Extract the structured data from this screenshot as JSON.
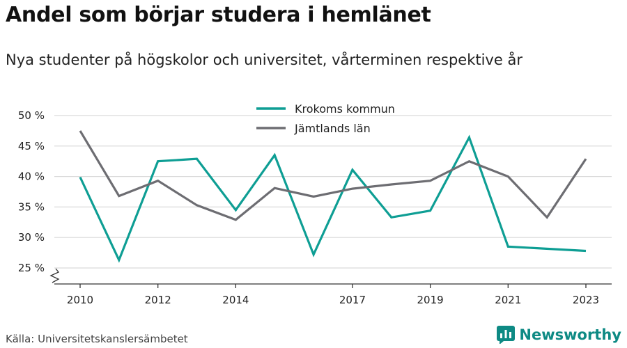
{
  "header": {
    "title": "Andel som börjar studera i hemlänet",
    "subtitle": "Nya studenter på högskolor och universitet, vårterminen respektive år"
  },
  "footer": {
    "source": "Källa: Universitetskanslersämbetet",
    "brand": "Newsworthy"
  },
  "colors": {
    "accent": "#0e9e94",
    "secondary": "#6d6d72",
    "grid": "#d9d9d9",
    "axis": "#333333",
    "brand": "#0e8a84"
  },
  "icons": {
    "brand": "bar-chart-logo-icon"
  },
  "chart_data": {
    "type": "line",
    "title": "Andel som börjar studera i hemlänet",
    "subtitle": "Nya studenter på högskolor och universitet, vårterminen respektive år",
    "xlabel": "",
    "ylabel": "",
    "x": [
      2010,
      2011,
      2012,
      2013,
      2014,
      2015,
      2016,
      2017,
      2018,
      2019,
      2020,
      2021,
      2022,
      2023
    ],
    "xticks": [
      2010,
      2012,
      2014,
      2017,
      2019,
      2021,
      2023
    ],
    "yticks": [
      25,
      30,
      35,
      40,
      45,
      50
    ],
    "ytick_labels": [
      "25 %",
      "30 %",
      "35 %",
      "40 %",
      "45 %",
      "50 %"
    ],
    "ylim": [
      25,
      50
    ],
    "axis_break": true,
    "grid": true,
    "legend": "top-center",
    "series": [
      {
        "name": "Krokoms kommun",
        "color": "#0e9e94",
        "values": [
          39.9,
          26.3,
          42.5,
          42.9,
          34.5,
          43.5,
          27.2,
          41.1,
          33.3,
          34.4,
          46.4,
          28.5,
          null,
          27.8
        ]
      },
      {
        "name": "Jämtlands län",
        "color": "#6d6d72",
        "values": [
          47.5,
          36.8,
          39.3,
          35.3,
          32.9,
          38.1,
          36.7,
          38.0,
          38.7,
          39.3,
          42.5,
          40.0,
          33.3,
          42.9
        ]
      }
    ]
  }
}
